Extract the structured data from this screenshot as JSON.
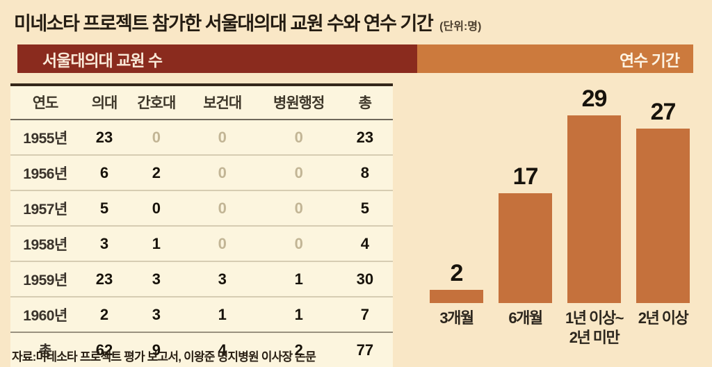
{
  "page": {
    "title": "미네소타 프로젝트 참가한 서울대의대 교원 수와 연수 기간",
    "unit_note": "(단위:명)",
    "source": "자료:미네소타 프로젝트 평가 보고서, 이왕준 명지병원 이사장 논문"
  },
  "bands": {
    "left_label": "서울대의대 교원 수",
    "left_color": "#8a2b1e",
    "right_label": "연수 기간",
    "right_color": "#cc7a3d"
  },
  "table": {
    "title": "서울대의대 교원 수",
    "headers": [
      "연도",
      "의대",
      "간호대",
      "보건대",
      "병원행정",
      "총"
    ],
    "rows": [
      {
        "cells": [
          "1955년",
          "23",
          {
            "v": "0",
            "muted": true
          },
          {
            "v": "0",
            "muted": true
          },
          {
            "v": "0",
            "muted": true
          },
          "23"
        ]
      },
      {
        "cells": [
          "1956년",
          "6",
          "2",
          {
            "v": "0",
            "muted": true
          },
          {
            "v": "0",
            "muted": true
          },
          "8"
        ]
      },
      {
        "cells": [
          "1957년",
          "5",
          "0",
          {
            "v": "0",
            "muted": true
          },
          {
            "v": "0",
            "muted": true
          },
          "5"
        ]
      },
      {
        "cells": [
          "1958년",
          "3",
          "1",
          {
            "v": "0",
            "muted": true
          },
          {
            "v": "0",
            "muted": true
          },
          "4"
        ]
      },
      {
        "cells": [
          "1959년",
          "23",
          "3",
          "3",
          "1",
          "30"
        ]
      },
      {
        "cells": [
          "1960년",
          "2",
          "3",
          "1",
          "1",
          "7"
        ]
      },
      {
        "cells": [
          "총",
          "62",
          "9",
          "4",
          "2",
          "77"
        ],
        "total": true
      }
    ]
  },
  "chart_data": {
    "type": "bar",
    "title": "연수 기간",
    "unit": "명",
    "categories": [
      "3개월",
      "6개월",
      "1년 이상~\n2년 미만",
      "2년 이상"
    ],
    "values": [
      2,
      17,
      29,
      27
    ],
    "ylim": [
      0,
      30
    ],
    "bar_color": "#c5713c",
    "value_labels": true,
    "grid": false,
    "legend": false
  }
}
